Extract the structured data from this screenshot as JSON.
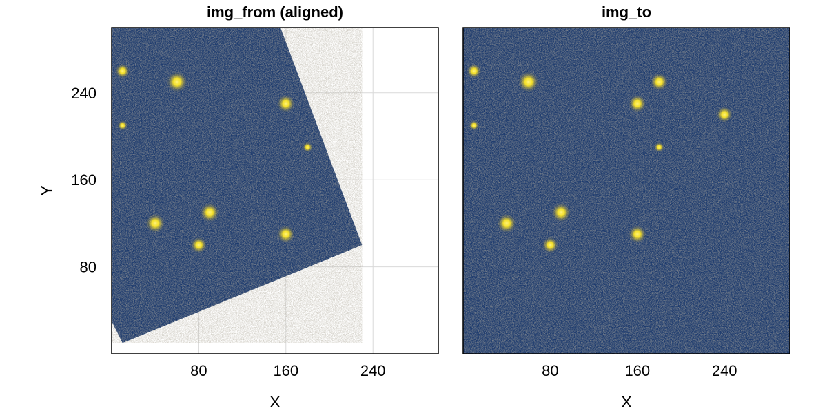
{
  "chart_data": [
    {
      "type": "heatmap",
      "title": "img_from (aligned)",
      "xlabel": "X",
      "ylabel": "Y",
      "xlim": [
        0,
        300
      ],
      "ylim": [
        0,
        300
      ],
      "xticks": [
        80,
        160,
        240
      ],
      "yticks": [
        80,
        160,
        240
      ],
      "grid": true,
      "colormap": [
        "#0b2a6b",
        "#fde725"
      ],
      "footprint": [
        [
          10,
          10
        ],
        [
          230,
          100
        ],
        [
          155,
          300
        ],
        [
          0,
          300
        ],
        [
          0,
          30
        ]
      ],
      "sources": [
        {
          "x": 10,
          "y": 260,
          "brightness": 0.6
        },
        {
          "x": 60,
          "y": 250,
          "brightness": 1.0
        },
        {
          "x": 160,
          "y": 230,
          "brightness": 0.8
        },
        {
          "x": 10,
          "y": 210,
          "brightness": 0.3
        },
        {
          "x": 180,
          "y": 190,
          "brightness": 0.3
        },
        {
          "x": 90,
          "y": 130,
          "brightness": 0.9
        },
        {
          "x": 40,
          "y": 120,
          "brightness": 0.9
        },
        {
          "x": 160,
          "y": 110,
          "brightness": 0.8
        },
        {
          "x": 80,
          "y": 100,
          "brightness": 0.7
        }
      ]
    },
    {
      "type": "heatmap",
      "title": "img_to",
      "xlabel": "X",
      "ylabel": "",
      "xlim": [
        0,
        300
      ],
      "ylim": [
        0,
        300
      ],
      "xticks": [
        80,
        160,
        240
      ],
      "yticks": [],
      "grid": false,
      "colormap": [
        "#0b2a6b",
        "#fde725"
      ],
      "sources": [
        {
          "x": 10,
          "y": 260,
          "brightness": 0.6
        },
        {
          "x": 60,
          "y": 250,
          "brightness": 1.0
        },
        {
          "x": 180,
          "y": 250,
          "brightness": 0.8
        },
        {
          "x": 160,
          "y": 230,
          "brightness": 0.8
        },
        {
          "x": 240,
          "y": 220,
          "brightness": 0.7
        },
        {
          "x": 10,
          "y": 210,
          "brightness": 0.3
        },
        {
          "x": 180,
          "y": 190,
          "brightness": 0.3
        },
        {
          "x": 90,
          "y": 130,
          "brightness": 0.9
        },
        {
          "x": 40,
          "y": 120,
          "brightness": 0.9
        },
        {
          "x": 160,
          "y": 110,
          "brightness": 0.8
        },
        {
          "x": 80,
          "y": 100,
          "brightness": 0.7
        }
      ]
    }
  ]
}
